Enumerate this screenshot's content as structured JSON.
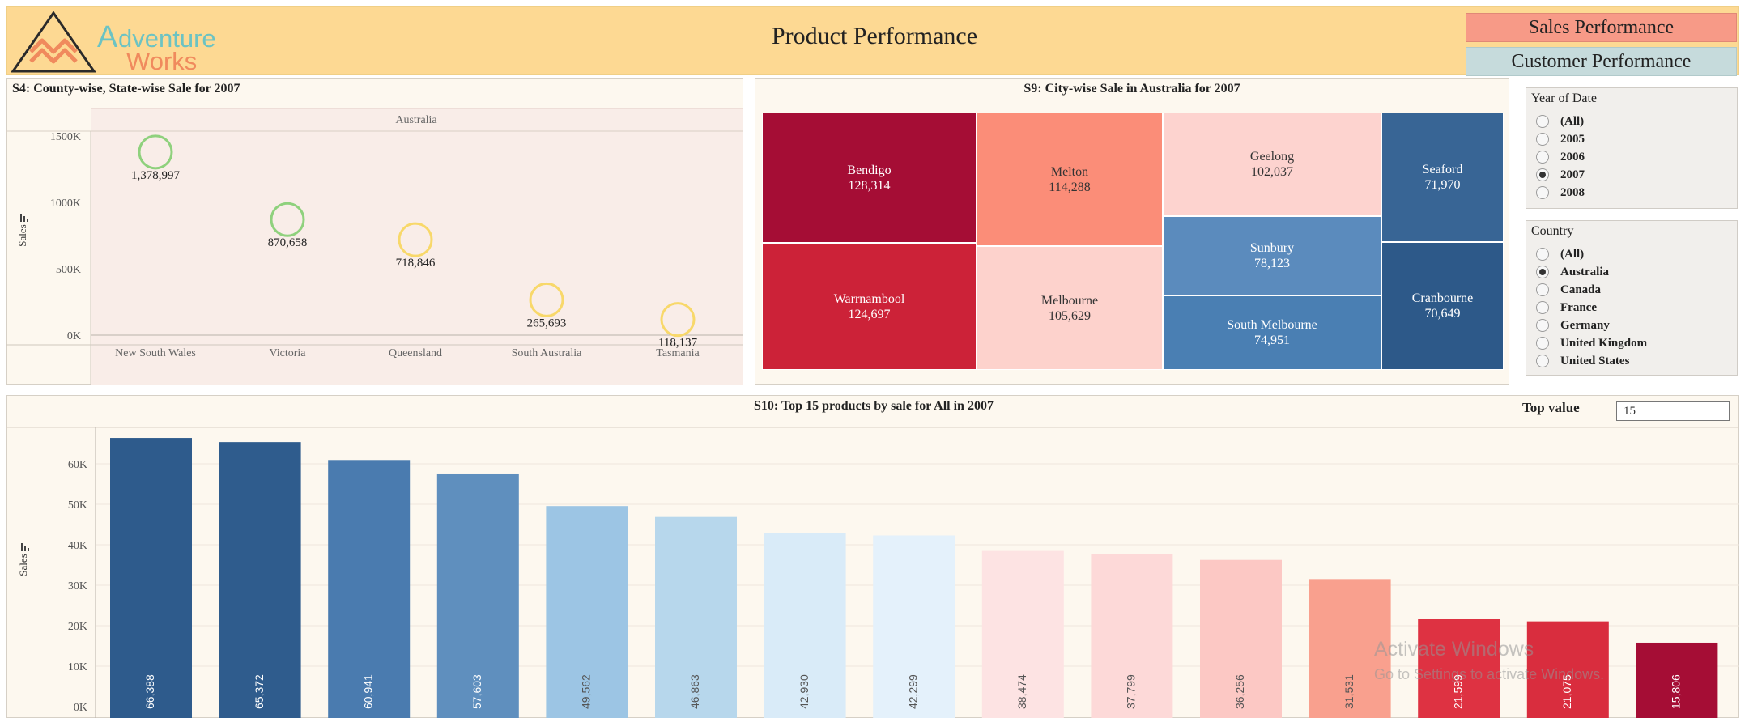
{
  "header": {
    "brand_a": "A",
    "brand_rest": "dventure",
    "brand_line2": "Works",
    "title": "Product Performance",
    "nav_sales": "Sales Performance",
    "nav_customer": "Customer Performance",
    "colors": {
      "band": "#fdd993",
      "sales_btn": "#f79a87",
      "customer_btn": "#c6dbdc",
      "logo_orange": "#f08a5d",
      "logo_teal": "#6cc3c3"
    }
  },
  "s4": {
    "title": "S4: County-wise, State-wise Sale for 2007",
    "header": "Australia",
    "ylabel": "Sales"
  },
  "s9": {
    "title": "S9:  City-wise Sale in  Australia for 2007"
  },
  "s10": {
    "title": "S10: Top 15 products by sale for  All in 2007",
    "ylabel": "Sales",
    "top_value_label": "Top value",
    "top_value": "15"
  },
  "filters": {
    "year": {
      "title": "Year of Date",
      "options": [
        "(All)",
        "2005",
        "2006",
        "2007",
        "2008"
      ],
      "selected": "2007"
    },
    "country": {
      "title": "Country",
      "options": [
        "(All)",
        "Australia",
        "Canada",
        "France",
        "Germany",
        "United Kingdom",
        "United States"
      ],
      "selected": "Australia"
    }
  },
  "watermark": {
    "line1": "Activate Windows",
    "line2": "Go to Settings to activate Windows."
  },
  "chart_data": [
    {
      "type": "scatter",
      "categories": [
        "New South Wales",
        "Victoria",
        "Queensland",
        "South Australia",
        "Tasmania"
      ],
      "values": [
        1378997,
        870658,
        718846,
        265693,
        118137
      ],
      "labels": [
        "1,378,997",
        "870,658",
        "718,846",
        "265,693",
        "118,137"
      ],
      "colors": [
        "#8fd17d",
        "#8fd17d",
        "#f8d86a",
        "#f8d86a",
        "#f8d86a"
      ],
      "ylim": [
        0,
        1500000
      ],
      "yticks": [
        "0K",
        "500K",
        "1000K",
        "1500K"
      ],
      "ytick_values": [
        0,
        500000,
        1000000,
        1500000
      ]
    },
    {
      "type": "treemap",
      "cells": [
        {
          "name": "Bendigo",
          "value": 128314,
          "label": "128,314",
          "color": "#a50d35"
        },
        {
          "name": "Warrnambool",
          "value": 124697,
          "label": "124,697",
          "color": "#cc2238"
        },
        {
          "name": "Melton",
          "value": 114288,
          "label": "114,288",
          "color": "#fb8d78"
        },
        {
          "name": "Melbourne",
          "value": 105629,
          "label": "105,629",
          "color": "#fdd2cc"
        },
        {
          "name": "Geelong",
          "value": 102037,
          "label": "102,037",
          "color": "#fdd3cf"
        },
        {
          "name": "Sunbury",
          "value": 78123,
          "label": "78,123",
          "color": "#5b8bbd"
        },
        {
          "name": "South Melbourne",
          "value": 74951,
          "label": "74,951",
          "color": "#4a7fb3"
        },
        {
          "name": "Seaford",
          "value": 71970,
          "label": "71,970",
          "color": "#386595"
        },
        {
          "name": "Cranbourne",
          "value": 70649,
          "label": "70,649",
          "color": "#2d5989"
        }
      ]
    },
    {
      "type": "bar",
      "values": [
        66388,
        65372,
        60941,
        57603,
        49562,
        46863,
        42930,
        42299,
        38474,
        37799,
        36256,
        31531,
        21599,
        21075,
        15806
      ],
      "labels": [
        "66,388",
        "65,372",
        "60,941",
        "57,603",
        "49,562",
        "46,863",
        "42,930",
        "42,299",
        "38,474",
        "37,799",
        "36,256",
        "31,531",
        "21,599",
        "21,075",
        "15,806"
      ],
      "colors": [
        "#2e5b8c",
        "#2f5c8d",
        "#4a7baf",
        "#5f8fbe",
        "#9cc5e4",
        "#b7d7ec",
        "#d9ebf8",
        "#e4f1fb",
        "#fde3e3",
        "#fdd9d8",
        "#fcc8c4",
        "#f9a08e",
        "#de3242",
        "#d92d3e",
        "#a50d35"
      ],
      "ylim": [
        0,
        70000
      ],
      "yticks": [
        "0K",
        "10K",
        "20K",
        "30K",
        "40K",
        "50K",
        "60K"
      ],
      "ytick_values": [
        0,
        10000,
        20000,
        30000,
        40000,
        50000,
        60000
      ]
    }
  ]
}
